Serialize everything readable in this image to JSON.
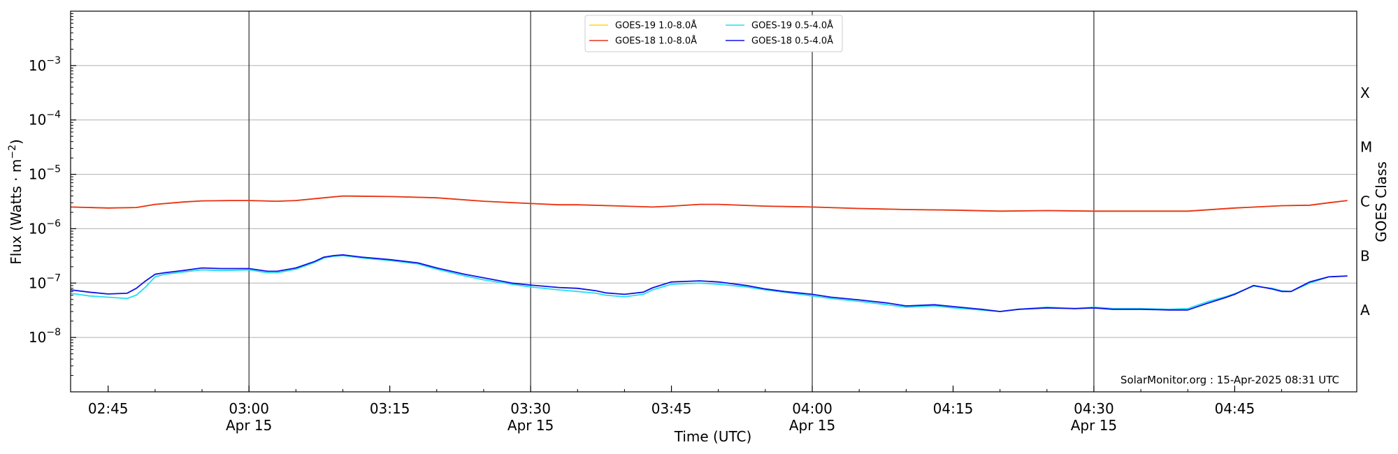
{
  "chart_data": {
    "type": "line",
    "xlabel": "Time (UTC)",
    "ylabel_main": "Flux (Watts · m",
    "ylabel_sup": "−2",
    "ylabel_close": ")",
    "right_axis_label": "GOES Class",
    "credit": "SolarMonitor.org : 15-Apr-2025 08:31 UTC",
    "y_scale": "log",
    "ylim": [
      1e-09,
      0.01
    ],
    "xlim_minutes_utc": [
      161,
      298
    ],
    "grid": "horizontal at each decade",
    "legend_position": "top-center",
    "x_ticks": [
      {
        "t": 165,
        "line1": "02:45",
        "line2": ""
      },
      {
        "t": 180,
        "line1": "03:00",
        "line2": "Apr 15"
      },
      {
        "t": 195,
        "line1": "03:15",
        "line2": ""
      },
      {
        "t": 210,
        "line1": "03:30",
        "line2": "Apr 15"
      },
      {
        "t": 225,
        "line1": "03:45",
        "line2": ""
      },
      {
        "t": 240,
        "line1": "04:00",
        "line2": "Apr 15"
      },
      {
        "t": 255,
        "line1": "04:15",
        "line2": ""
      },
      {
        "t": 270,
        "line1": "04:30",
        "line2": "Apr 15"
      },
      {
        "t": 285,
        "line1": "04:45",
        "line2": ""
      }
    ],
    "day_boundary_lines": [
      180,
      210,
      240,
      270
    ],
    "y_ticks": [
      {
        "exp": -8,
        "label_base": "10",
        "label_exp": "−8"
      },
      {
        "exp": -7,
        "label_base": "10",
        "label_exp": "−7"
      },
      {
        "exp": -6,
        "label_base": "10",
        "label_exp": "−6"
      },
      {
        "exp": -5,
        "label_base": "10",
        "label_exp": "−5"
      },
      {
        "exp": -4,
        "label_base": "10",
        "label_exp": "−4"
      },
      {
        "exp": -3,
        "label_base": "10",
        "label_exp": "−3"
      }
    ],
    "goes_classes": [
      {
        "label": "A",
        "exp": -7.5
      },
      {
        "label": "B",
        "exp": -6.5
      },
      {
        "label": "C",
        "exp": -5.5
      },
      {
        "label": "M",
        "exp": -4.5
      },
      {
        "label": "X",
        "exp": -3.5
      }
    ],
    "legend_rows": [
      [
        {
          "label": "GOES-19 1.0-8.0Å",
          "series": 0
        },
        {
          "label": "GOES-19 0.5-4.0Å",
          "series": 2
        }
      ],
      [
        {
          "label": "GOES-18 1.0-8.0Å",
          "series": 1
        },
        {
          "label": "GOES-18 0.5-4.0Å",
          "series": 3
        }
      ]
    ],
    "series": [
      {
        "name": "GOES-19 1.0-8.0Å",
        "color": "#FFD700",
        "x": [
          161,
          165,
          168,
          170,
          173,
          175,
          178,
          180,
          183,
          185,
          188,
          190,
          195,
          200,
          205,
          210,
          213,
          215,
          220,
          223,
          225,
          228,
          230,
          235,
          240,
          245,
          250,
          255,
          260,
          265,
          270,
          275,
          280,
          285,
          290,
          293,
          295,
          297
        ],
        "y": [
          2.5e-06,
          2.4e-06,
          2.45e-06,
          2.8e-06,
          3.1e-06,
          3.25e-06,
          3.3e-06,
          3.3e-06,
          3.2e-06,
          3.3e-06,
          3.7e-06,
          4e-06,
          3.9e-06,
          3.7e-06,
          3.2e-06,
          2.9e-06,
          2.75e-06,
          2.75e-06,
          2.6e-06,
          2.5e-06,
          2.6e-06,
          2.8e-06,
          2.8e-06,
          2.6e-06,
          2.5e-06,
          2.35e-06,
          2.25e-06,
          2.2e-06,
          2.1e-06,
          2.15e-06,
          2.1e-06,
          2.1e-06,
          2.1e-06,
          2.4e-06,
          2.65e-06,
          2.7e-06,
          3e-06,
          3.3e-06
        ]
      },
      {
        "name": "GOES-18 1.0-8.0Å",
        "color": "#E8321E",
        "x": [
          161,
          165,
          168,
          170,
          173,
          175,
          178,
          180,
          183,
          185,
          188,
          190,
          195,
          200,
          205,
          210,
          213,
          215,
          220,
          223,
          225,
          228,
          230,
          235,
          240,
          245,
          250,
          255,
          260,
          265,
          270,
          275,
          280,
          285,
          290,
          293,
          295,
          297
        ],
        "y": [
          2.5e-06,
          2.4e-06,
          2.45e-06,
          2.8e-06,
          3.1e-06,
          3.25e-06,
          3.3e-06,
          3.3e-06,
          3.2e-06,
          3.3e-06,
          3.7e-06,
          4e-06,
          3.9e-06,
          3.7e-06,
          3.2e-06,
          2.9e-06,
          2.75e-06,
          2.75e-06,
          2.6e-06,
          2.5e-06,
          2.6e-06,
          2.8e-06,
          2.8e-06,
          2.6e-06,
          2.5e-06,
          2.35e-06,
          2.25e-06,
          2.2e-06,
          2.1e-06,
          2.15e-06,
          2.1e-06,
          2.1e-06,
          2.1e-06,
          2.4e-06,
          2.65e-06,
          2.7e-06,
          3e-06,
          3.3e-06
        ]
      },
      {
        "name": "GOES-19 0.5-4.0Å",
        "color": "#22E0F0",
        "x": [
          161,
          163,
          165,
          167,
          168,
          169,
          170,
          171,
          173,
          175,
          177,
          180,
          182,
          183,
          185,
          187,
          188,
          189,
          190,
          192,
          195,
          198,
          200,
          203,
          205,
          208,
          210,
          213,
          215,
          217,
          218,
          220,
          222,
          223,
          225,
          228,
          230,
          233,
          235,
          237,
          240,
          242,
          245,
          248,
          250,
          253,
          255,
          258,
          260,
          262,
          265,
          268,
          270,
          272,
          275,
          278,
          280,
          282,
          284,
          285,
          287,
          289,
          290,
          291,
          293,
          295,
          297
        ],
        "y": [
          6.5e-08,
          5.8e-08,
          5.5e-08,
          5.2e-08,
          6e-08,
          8.5e-08,
          1.3e-07,
          1.45e-07,
          1.6e-07,
          1.75e-07,
          1.7e-07,
          1.75e-07,
          1.55e-07,
          1.55e-07,
          1.8e-07,
          2.4e-07,
          2.9e-07,
          3.1e-07,
          3.2e-07,
          2.9e-07,
          2.6e-07,
          2.25e-07,
          1.8e-07,
          1.35e-07,
          1.15e-07,
          9.5e-08,
          8.5e-08,
          7.5e-08,
          7e-08,
          6.5e-08,
          6e-08,
          5.6e-08,
          6.2e-08,
          7.5e-08,
          9.5e-08,
          1e-07,
          9.5e-08,
          8.5e-08,
          7.5e-08,
          6.8e-08,
          5.8e-08,
          5.2e-08,
          4.6e-08,
          4e-08,
          3.6e-08,
          3.8e-08,
          3.5e-08,
          3.2e-08,
          3e-08,
          3.3e-08,
          3.6e-08,
          3.4e-08,
          3.6e-08,
          3.4e-08,
          3.4e-08,
          3.3e-08,
          3.4e-08,
          4.5e-08,
          5.6e-08,
          6.4e-08,
          8.8e-08,
          8e-08,
          7.2e-08,
          7e-08,
          1e-07,
          1.3e-07,
          1.35e-07
        ]
      },
      {
        "name": "GOES-18 0.5-4.0Å",
        "color": "#1010E8",
        "x": [
          161,
          163,
          165,
          167,
          168,
          169,
          170,
          171,
          173,
          175,
          177,
          180,
          182,
          183,
          185,
          187,
          188,
          189,
          190,
          192,
          195,
          198,
          200,
          203,
          205,
          208,
          210,
          213,
          215,
          217,
          218,
          220,
          222,
          223,
          225,
          228,
          230,
          233,
          235,
          237,
          240,
          242,
          245,
          248,
          250,
          253,
          255,
          258,
          260,
          262,
          265,
          268,
          270,
          272,
          275,
          278,
          280,
          282,
          284,
          285,
          287,
          289,
          290,
          291,
          293,
          295,
          297
        ],
        "y": [
          7.5e-08,
          6.8e-08,
          6.3e-08,
          6.5e-08,
          8e-08,
          1.1e-07,
          1.45e-07,
          1.55e-07,
          1.7e-07,
          1.9e-07,
          1.85e-07,
          1.85e-07,
          1.65e-07,
          1.65e-07,
          1.9e-07,
          2.5e-07,
          3e-07,
          3.2e-07,
          3.3e-07,
          3e-07,
          2.7e-07,
          2.35e-07,
          1.9e-07,
          1.45e-07,
          1.25e-07,
          1e-07,
          9.2e-08,
          8.3e-08,
          8e-08,
          7.2e-08,
          6.6e-08,
          6.2e-08,
          6.8e-08,
          8.2e-08,
          1.05e-07,
          1.1e-07,
          1.05e-07,
          9e-08,
          7.8e-08,
          7e-08,
          6.2e-08,
          5.5e-08,
          4.9e-08,
          4.3e-08,
          3.8e-08,
          4e-08,
          3.7e-08,
          3.3e-08,
          3e-08,
          3.3e-08,
          3.5e-08,
          3.4e-08,
          3.5e-08,
          3.3e-08,
          3.3e-08,
          3.2e-08,
          3.2e-08,
          4.2e-08,
          5.4e-08,
          6.2e-08,
          9e-08,
          7.8e-08,
          7e-08,
          7e-08,
          1.05e-07,
          1.3e-07,
          1.35e-07
        ]
      }
    ]
  }
}
